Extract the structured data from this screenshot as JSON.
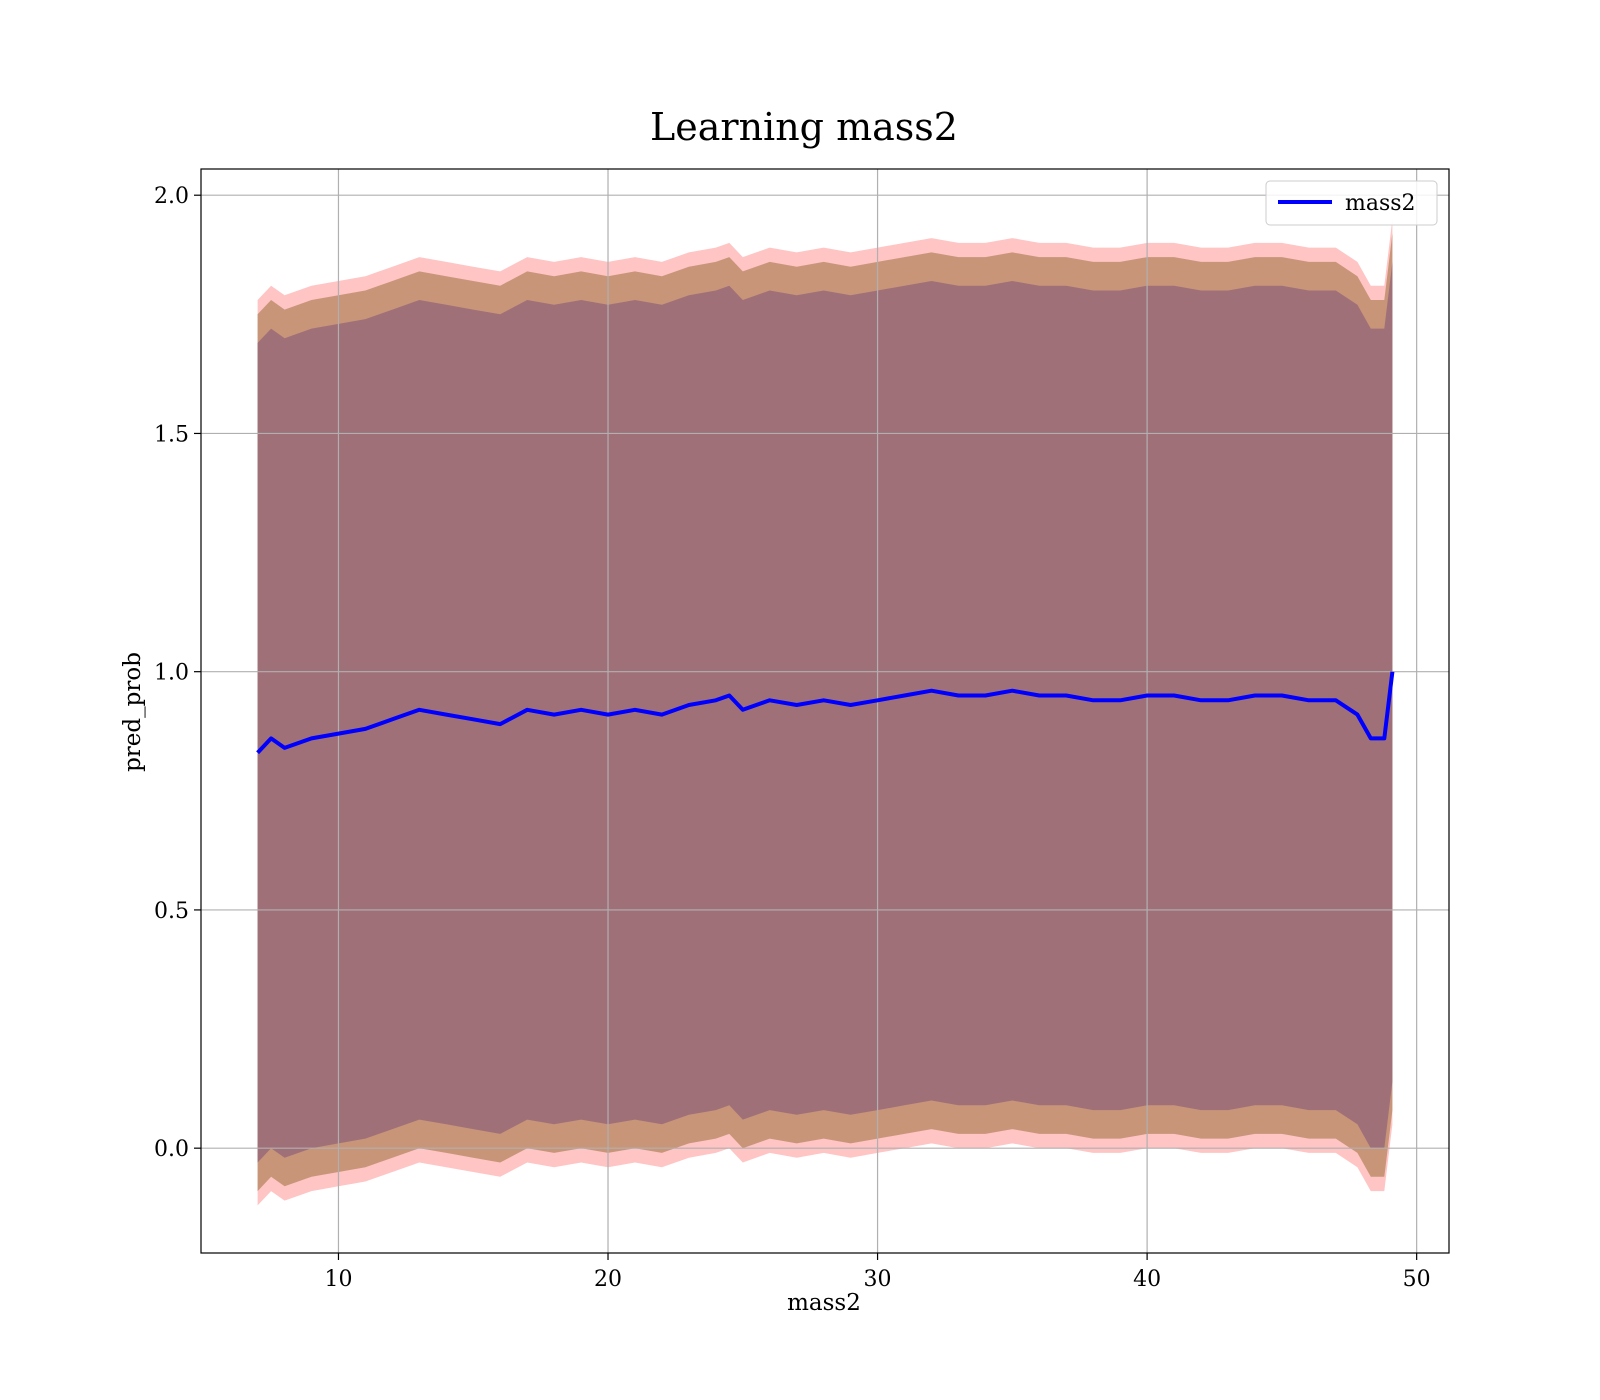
{
  "chart_data": {
    "type": "line",
    "title": "Learning mass2",
    "xlabel": "mass2",
    "ylabel": "pred_prob",
    "xlim": [
      4.9,
      51.2
    ],
    "ylim": [
      -0.22,
      2.055
    ],
    "xticks": [
      10,
      20,
      30,
      40,
      50
    ],
    "yticks": [
      0.0,
      0.5,
      1.0,
      1.5,
      2.0
    ],
    "ytick_labels": [
      "0.0",
      "0.5",
      "1.0",
      "1.5",
      "2.0"
    ],
    "grid": true,
    "legend": {
      "position": "top-right",
      "entries": [
        "mass2"
      ]
    },
    "colors": {
      "line": "#0000ff",
      "band_outer": "#ffb0b0",
      "band_middle": "#c89579",
      "band_inner": "#a07079",
      "grid": "#b0b0b0"
    },
    "x": [
      7.0,
      7.5,
      8.0,
      9.0,
      10.0,
      11.0,
      12.0,
      13.0,
      14.0,
      15.0,
      16.0,
      17.0,
      18.0,
      19.0,
      20.0,
      21.0,
      22.0,
      23.0,
      24.0,
      24.5,
      25.0,
      26.0,
      27.0,
      28.0,
      29.0,
      30.0,
      31.0,
      32.0,
      33.0,
      34.0,
      35.0,
      36.0,
      37.0,
      38.0,
      39.0,
      40.0,
      41.0,
      42.0,
      43.0,
      44.0,
      45.0,
      46.0,
      47.0,
      47.8,
      48.3,
      48.8,
      49.1
    ],
    "series": [
      {
        "name": "mass2",
        "values": [
          0.83,
          0.86,
          0.84,
          0.86,
          0.87,
          0.88,
          0.9,
          0.92,
          0.91,
          0.9,
          0.89,
          0.92,
          0.91,
          0.92,
          0.91,
          0.92,
          0.91,
          0.93,
          0.94,
          0.95,
          0.92,
          0.94,
          0.93,
          0.94,
          0.93,
          0.94,
          0.95,
          0.96,
          0.95,
          0.95,
          0.96,
          0.95,
          0.95,
          0.94,
          0.94,
          0.95,
          0.95,
          0.94,
          0.94,
          0.95,
          0.95,
          0.94,
          0.94,
          0.91,
          0.86,
          0.86,
          1.0
        ],
        "band_half_widths": {
          "outer": 0.95,
          "middle": 0.92,
          "inner": 0.86
        }
      }
    ]
  }
}
